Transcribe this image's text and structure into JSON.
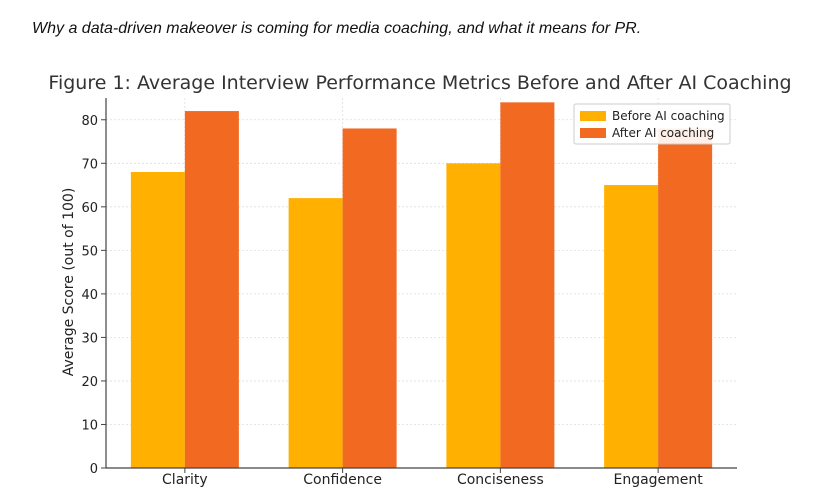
{
  "caption": "Why a data-driven makeover is coming for media coaching, and what it means for PR.",
  "chart_data": {
    "type": "bar",
    "title": "Figure 1: Average Interview Performance Metrics Before and After AI Coaching",
    "xlabel": "",
    "ylabel": "Average Score (out of 100)",
    "categories": [
      "Clarity",
      "Confidence",
      "Conciseness",
      "Engagement"
    ],
    "series": [
      {
        "name": "Before AI coaching",
        "color": "#FFB000",
        "values": [
          68,
          62,
          70,
          65
        ]
      },
      {
        "name": "After AI coaching",
        "color": "#F26A21",
        "values": [
          82,
          78,
          84,
          78
        ]
      }
    ],
    "ylim": [
      0,
      85
    ],
    "yticks": [
      0,
      10,
      20,
      30,
      40,
      50,
      60,
      70,
      80
    ],
    "grid": true,
    "legend_position": "top-right"
  }
}
